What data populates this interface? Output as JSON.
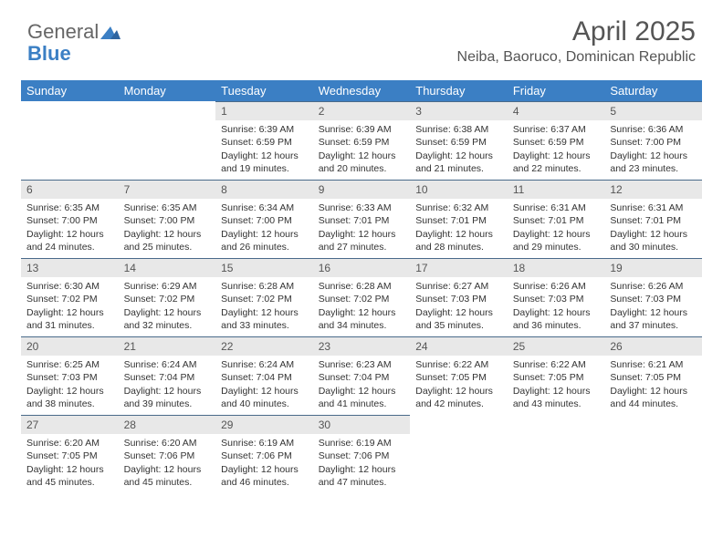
{
  "brand": {
    "part1": "General",
    "part2": "Blue"
  },
  "title": "April 2025",
  "location": "Neiba, Baoruco, Dominican Republic",
  "colors": {
    "header_bg": "#3b7fc4",
    "header_text": "#ffffff",
    "daynum_bg": "#e8e8e8",
    "day_border": "#4a6a8a",
    "text": "#333333",
    "title_text": "#555555"
  },
  "day_headers": [
    "Sunday",
    "Monday",
    "Tuesday",
    "Wednesday",
    "Thursday",
    "Friday",
    "Saturday"
  ],
  "weeks": [
    [
      {
        "n": "",
        "empty": true
      },
      {
        "n": "",
        "empty": true
      },
      {
        "n": "1",
        "sunrise": "6:39 AM",
        "sunset": "6:59 PM",
        "daylight": "12 hours and 19 minutes."
      },
      {
        "n": "2",
        "sunrise": "6:39 AM",
        "sunset": "6:59 PM",
        "daylight": "12 hours and 20 minutes."
      },
      {
        "n": "3",
        "sunrise": "6:38 AM",
        "sunset": "6:59 PM",
        "daylight": "12 hours and 21 minutes."
      },
      {
        "n": "4",
        "sunrise": "6:37 AM",
        "sunset": "6:59 PM",
        "daylight": "12 hours and 22 minutes."
      },
      {
        "n": "5",
        "sunrise": "6:36 AM",
        "sunset": "7:00 PM",
        "daylight": "12 hours and 23 minutes."
      }
    ],
    [
      {
        "n": "6",
        "sunrise": "6:35 AM",
        "sunset": "7:00 PM",
        "daylight": "12 hours and 24 minutes."
      },
      {
        "n": "7",
        "sunrise": "6:35 AM",
        "sunset": "7:00 PM",
        "daylight": "12 hours and 25 minutes."
      },
      {
        "n": "8",
        "sunrise": "6:34 AM",
        "sunset": "7:00 PM",
        "daylight": "12 hours and 26 minutes."
      },
      {
        "n": "9",
        "sunrise": "6:33 AM",
        "sunset": "7:01 PM",
        "daylight": "12 hours and 27 minutes."
      },
      {
        "n": "10",
        "sunrise": "6:32 AM",
        "sunset": "7:01 PM",
        "daylight": "12 hours and 28 minutes."
      },
      {
        "n": "11",
        "sunrise": "6:31 AM",
        "sunset": "7:01 PM",
        "daylight": "12 hours and 29 minutes."
      },
      {
        "n": "12",
        "sunrise": "6:31 AM",
        "sunset": "7:01 PM",
        "daylight": "12 hours and 30 minutes."
      }
    ],
    [
      {
        "n": "13",
        "sunrise": "6:30 AM",
        "sunset": "7:02 PM",
        "daylight": "12 hours and 31 minutes."
      },
      {
        "n": "14",
        "sunrise": "6:29 AM",
        "sunset": "7:02 PM",
        "daylight": "12 hours and 32 minutes."
      },
      {
        "n": "15",
        "sunrise": "6:28 AM",
        "sunset": "7:02 PM",
        "daylight": "12 hours and 33 minutes."
      },
      {
        "n": "16",
        "sunrise": "6:28 AM",
        "sunset": "7:02 PM",
        "daylight": "12 hours and 34 minutes."
      },
      {
        "n": "17",
        "sunrise": "6:27 AM",
        "sunset": "7:03 PM",
        "daylight": "12 hours and 35 minutes."
      },
      {
        "n": "18",
        "sunrise": "6:26 AM",
        "sunset": "7:03 PM",
        "daylight": "12 hours and 36 minutes."
      },
      {
        "n": "19",
        "sunrise": "6:26 AM",
        "sunset": "7:03 PM",
        "daylight": "12 hours and 37 minutes."
      }
    ],
    [
      {
        "n": "20",
        "sunrise": "6:25 AM",
        "sunset": "7:03 PM",
        "daylight": "12 hours and 38 minutes."
      },
      {
        "n": "21",
        "sunrise": "6:24 AM",
        "sunset": "7:04 PM",
        "daylight": "12 hours and 39 minutes."
      },
      {
        "n": "22",
        "sunrise": "6:24 AM",
        "sunset": "7:04 PM",
        "daylight": "12 hours and 40 minutes."
      },
      {
        "n": "23",
        "sunrise": "6:23 AM",
        "sunset": "7:04 PM",
        "daylight": "12 hours and 41 minutes."
      },
      {
        "n": "24",
        "sunrise": "6:22 AM",
        "sunset": "7:05 PM",
        "daylight": "12 hours and 42 minutes."
      },
      {
        "n": "25",
        "sunrise": "6:22 AM",
        "sunset": "7:05 PM",
        "daylight": "12 hours and 43 minutes."
      },
      {
        "n": "26",
        "sunrise": "6:21 AM",
        "sunset": "7:05 PM",
        "daylight": "12 hours and 44 minutes."
      }
    ],
    [
      {
        "n": "27",
        "sunrise": "6:20 AM",
        "sunset": "7:05 PM",
        "daylight": "12 hours and 45 minutes."
      },
      {
        "n": "28",
        "sunrise": "6:20 AM",
        "sunset": "7:06 PM",
        "daylight": "12 hours and 45 minutes."
      },
      {
        "n": "29",
        "sunrise": "6:19 AM",
        "sunset": "7:06 PM",
        "daylight": "12 hours and 46 minutes."
      },
      {
        "n": "30",
        "sunrise": "6:19 AM",
        "sunset": "7:06 PM",
        "daylight": "12 hours and 47 minutes."
      },
      {
        "n": "",
        "empty": true
      },
      {
        "n": "",
        "empty": true
      },
      {
        "n": "",
        "empty": true
      }
    ]
  ],
  "labels": {
    "sunrise_prefix": "Sunrise: ",
    "sunset_prefix": "Sunset: ",
    "daylight_prefix": "Daylight: "
  }
}
